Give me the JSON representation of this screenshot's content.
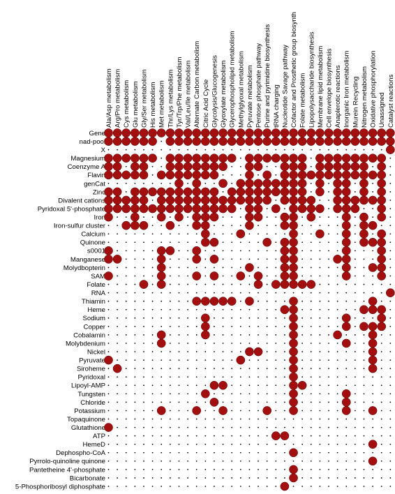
{
  "chart_data": {
    "type": "dot-matrix",
    "title": "",
    "xlabel": "",
    "ylabel": "",
    "dot_color": "#a30f0f",
    "empty_color": "#000000",
    "columns": [
      "Ala/Asp metabolism",
      "Arg/Pro metabolism",
      "Cys metabolism",
      "Glu metabolism",
      "Gly/Ser metabolism",
      "His metabolism",
      "Met metabolism",
      "Thr/Lys metabolism",
      "Tyr/Trp/Phe metabolism",
      "Val/Leu/Ile metabolism",
      "Alternate Carbon metabolism",
      "Citric Acid Cycle",
      "Glycolysis/Glucogenesis",
      "Glyoxylate metabolism",
      "Glycerophospholipid metabolism",
      "Methylglyoxal metabolism",
      "Pyruvate metabolism",
      "Pentose phosphate pathway",
      "Purine and pyrimidine biosynthesis",
      "tRNA charging",
      "Nucleotide Savage pathway",
      "Cofactor and Prosthetic group biosynth",
      "Folate metabolism",
      "Lipopolysaccharide biosynthesis",
      "Membrane lipid metabolism",
      "Cell envelope biosynthesis",
      "Anaplerotic reactions",
      "Inorganic Iron metabolism",
      "Murein Recycling",
      "Nitrogen metabolism",
      "Oxidative phosphorylation",
      "Unassigned",
      "Catalyst reactions"
    ],
    "rows": [
      {
        "label": "Gene",
        "present": [
          0,
          1,
          2,
          3,
          4,
          5,
          6,
          7,
          8,
          9,
          10,
          11,
          12,
          13,
          14,
          15,
          16,
          17,
          18,
          19,
          20,
          21,
          22,
          23,
          24,
          25,
          26,
          27,
          28,
          29,
          30,
          31,
          32
        ]
      },
      {
        "label": "nad-pool",
        "present": [
          0,
          1,
          2,
          3,
          4,
          5,
          7,
          8,
          9,
          10,
          11,
          12,
          13,
          14,
          15,
          16,
          17,
          18,
          19,
          20,
          21,
          22,
          23,
          24,
          25,
          26,
          27,
          28,
          29,
          30,
          31,
          32
        ]
      },
      {
        "label": "X",
        "present": [
          32
        ]
      },
      {
        "label": "Magnesium",
        "present": [
          0,
          1,
          2,
          3,
          4,
          5,
          7,
          8,
          9,
          10,
          11,
          12,
          13,
          14,
          16,
          17,
          18,
          19,
          20,
          21,
          22,
          24,
          25,
          26,
          27,
          28,
          29,
          30,
          31
        ]
      },
      {
        "label": "Coenzyme A",
        "present": [
          0,
          1,
          3,
          4,
          7,
          8,
          9,
          10,
          11,
          12,
          13,
          16,
          17,
          20,
          21,
          22,
          24,
          25,
          26,
          27,
          28,
          29,
          31
        ]
      },
      {
        "label": "Flavin",
        "present": [
          0,
          1,
          2,
          3,
          4,
          6,
          7,
          8,
          9,
          10,
          11,
          12,
          16,
          18,
          20,
          21,
          22,
          23,
          24,
          25,
          26,
          27,
          28,
          29,
          30,
          31
        ]
      },
      {
        "label": "genCat",
        "present": [
          8,
          10,
          13,
          15,
          16,
          17,
          18,
          19,
          20,
          21,
          22,
          24,
          26,
          27,
          29,
          31
        ]
      },
      {
        "label": "Zinc",
        "present": [
          0,
          1,
          3,
          4,
          5,
          6,
          7,
          8,
          9,
          10,
          11,
          12,
          14,
          15,
          16,
          17,
          18,
          19,
          20,
          21,
          22,
          24,
          26,
          27,
          29,
          31
        ]
      },
      {
        "label": "Divalent cations",
        "present": [
          0,
          1,
          2,
          3,
          4,
          6,
          7,
          8,
          9,
          10,
          11,
          12,
          13,
          14,
          15,
          16,
          17,
          18,
          20,
          21,
          22,
          23,
          26,
          27,
          28,
          29,
          30,
          31
        ]
      },
      {
        "label": "Pyridoxal 5'-phosphate",
        "present": [
          0,
          1,
          2,
          3,
          4,
          5,
          6,
          7,
          8,
          9,
          10,
          11,
          12,
          13,
          14,
          16,
          17,
          19,
          21,
          22,
          23,
          24,
          26,
          27,
          28,
          31
        ]
      },
      {
        "label": "Iron",
        "present": [
          0,
          3,
          6,
          8,
          10,
          11,
          12,
          16,
          17,
          20,
          21,
          23,
          27,
          29,
          31
        ]
      },
      {
        "label": "Iron-sulfur cluster",
        "present": [
          2,
          3,
          4,
          7,
          10,
          11,
          16,
          20,
          21,
          27,
          29,
          30
        ]
      },
      {
        "label": "Calcium",
        "present": [
          11,
          15,
          21,
          24,
          27,
          29,
          31
        ]
      },
      {
        "label": "Quinone",
        "present": [
          11,
          12,
          18,
          20,
          21,
          27,
          29,
          30,
          31
        ]
      },
      {
        "label": "s0001",
        "present": [
          0,
          6,
          7,
          10,
          20,
          21,
          27,
          31
        ]
      },
      {
        "label": "Manganese",
        "present": [
          0,
          1,
          6,
          10,
          12,
          20,
          21,
          26,
          27,
          31
        ]
      },
      {
        "label": "Molydbopterin",
        "present": [
          6,
          16,
          20,
          21,
          27,
          30,
          31
        ]
      },
      {
        "label": "SAM",
        "present": [
          0,
          6,
          10,
          12,
          15,
          17,
          20,
          21,
          27,
          31
        ]
      },
      {
        "label": "Folate",
        "present": [
          4,
          6,
          17,
          19,
          20,
          21,
          22,
          23
        ]
      },
      {
        "label": "RNA",
        "present": [
          32
        ]
      },
      {
        "label": "Thiamin",
        "present": [
          10,
          11,
          12,
          13,
          14,
          16,
          21,
          30
        ]
      },
      {
        "label": "Heme",
        "present": [
          20,
          21,
          29,
          30,
          31
        ]
      },
      {
        "label": "Sodium",
        "present": [
          11,
          21,
          27,
          31
        ]
      },
      {
        "label": "Copper",
        "present": [
          11,
          21,
          27,
          29,
          30,
          31
        ]
      },
      {
        "label": "Cobalamin",
        "present": [
          6,
          11,
          21,
          26,
          30
        ]
      },
      {
        "label": "Molybdenium",
        "present": [
          6,
          21,
          27,
          30
        ]
      },
      {
        "label": "Nickel",
        "present": [
          16,
          17,
          21,
          30
        ]
      },
      {
        "label": "Pyruvate",
        "present": [
          0,
          15,
          21,
          30
        ]
      },
      {
        "label": "Siroheme",
        "present": [
          1,
          21,
          30
        ]
      },
      {
        "label": "Pyridoxal",
        "present": [
          21
        ]
      },
      {
        "label": "Lipoyl-AMP",
        "present": [
          12,
          13,
          21,
          22
        ]
      },
      {
        "label": "Tungsten",
        "present": [
          11,
          21,
          27
        ]
      },
      {
        "label": "Chloride",
        "present": [
          12,
          21,
          27
        ]
      },
      {
        "label": "Potassium",
        "present": [
          6,
          10,
          13,
          18,
          21,
          27,
          30
        ]
      },
      {
        "label": "Topaquinone",
        "present": []
      },
      {
        "label": "Glutathione",
        "present": [
          0
        ]
      },
      {
        "label": "ATP",
        "present": [
          19,
          20
        ]
      },
      {
        "label": "HemeD",
        "present": [
          30
        ]
      },
      {
        "label": "Dephospho-CoA",
        "present": [
          21
        ]
      },
      {
        "label": "Pyrrolo-quinoline quinone",
        "present": [
          30
        ]
      },
      {
        "label": "Pantetheine 4'-phosphate",
        "present": [
          21
        ]
      },
      {
        "label": "Bicarbonate",
        "present": [
          21
        ]
      },
      {
        "label": "5-Phosphoribosyl diphosphate",
        "present": [
          20
        ]
      }
    ]
  }
}
